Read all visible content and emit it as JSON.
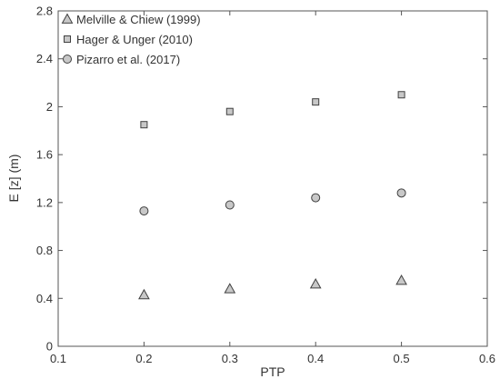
{
  "chart_data": {
    "type": "scatter",
    "title": "",
    "xlabel": "PTP",
    "ylabel": "E [z]  (m)",
    "xlim": [
      0.1,
      0.6
    ],
    "ylim": [
      0,
      2.8
    ],
    "xticks": [
      "0.1",
      "0.2",
      "0.3",
      "0.4",
      "0.5",
      "0.6"
    ],
    "yticks": [
      "0",
      "0.4",
      "0.8",
      "1.2",
      "1.6",
      "2",
      "2.4",
      "2.8"
    ],
    "grid": false,
    "legend_position": "top-left",
    "x": [
      0.2,
      0.3,
      0.4,
      0.5
    ],
    "series": [
      {
        "name": "Melville & Chiew (1999)",
        "marker": "triangle",
        "values": [
          0.43,
          0.48,
          0.52,
          0.55
        ]
      },
      {
        "name": "Hager & Unger (2010)",
        "marker": "square",
        "values": [
          1.85,
          1.96,
          2.04,
          2.1
        ]
      },
      {
        "name": "Pizarro et al. (2017)",
        "marker": "circle",
        "values": [
          1.13,
          1.18,
          1.24,
          1.28
        ]
      }
    ]
  },
  "colors": {
    "marker_fill": "#c8c8c8",
    "marker_stroke": "#404040",
    "axis": "#555555"
  }
}
